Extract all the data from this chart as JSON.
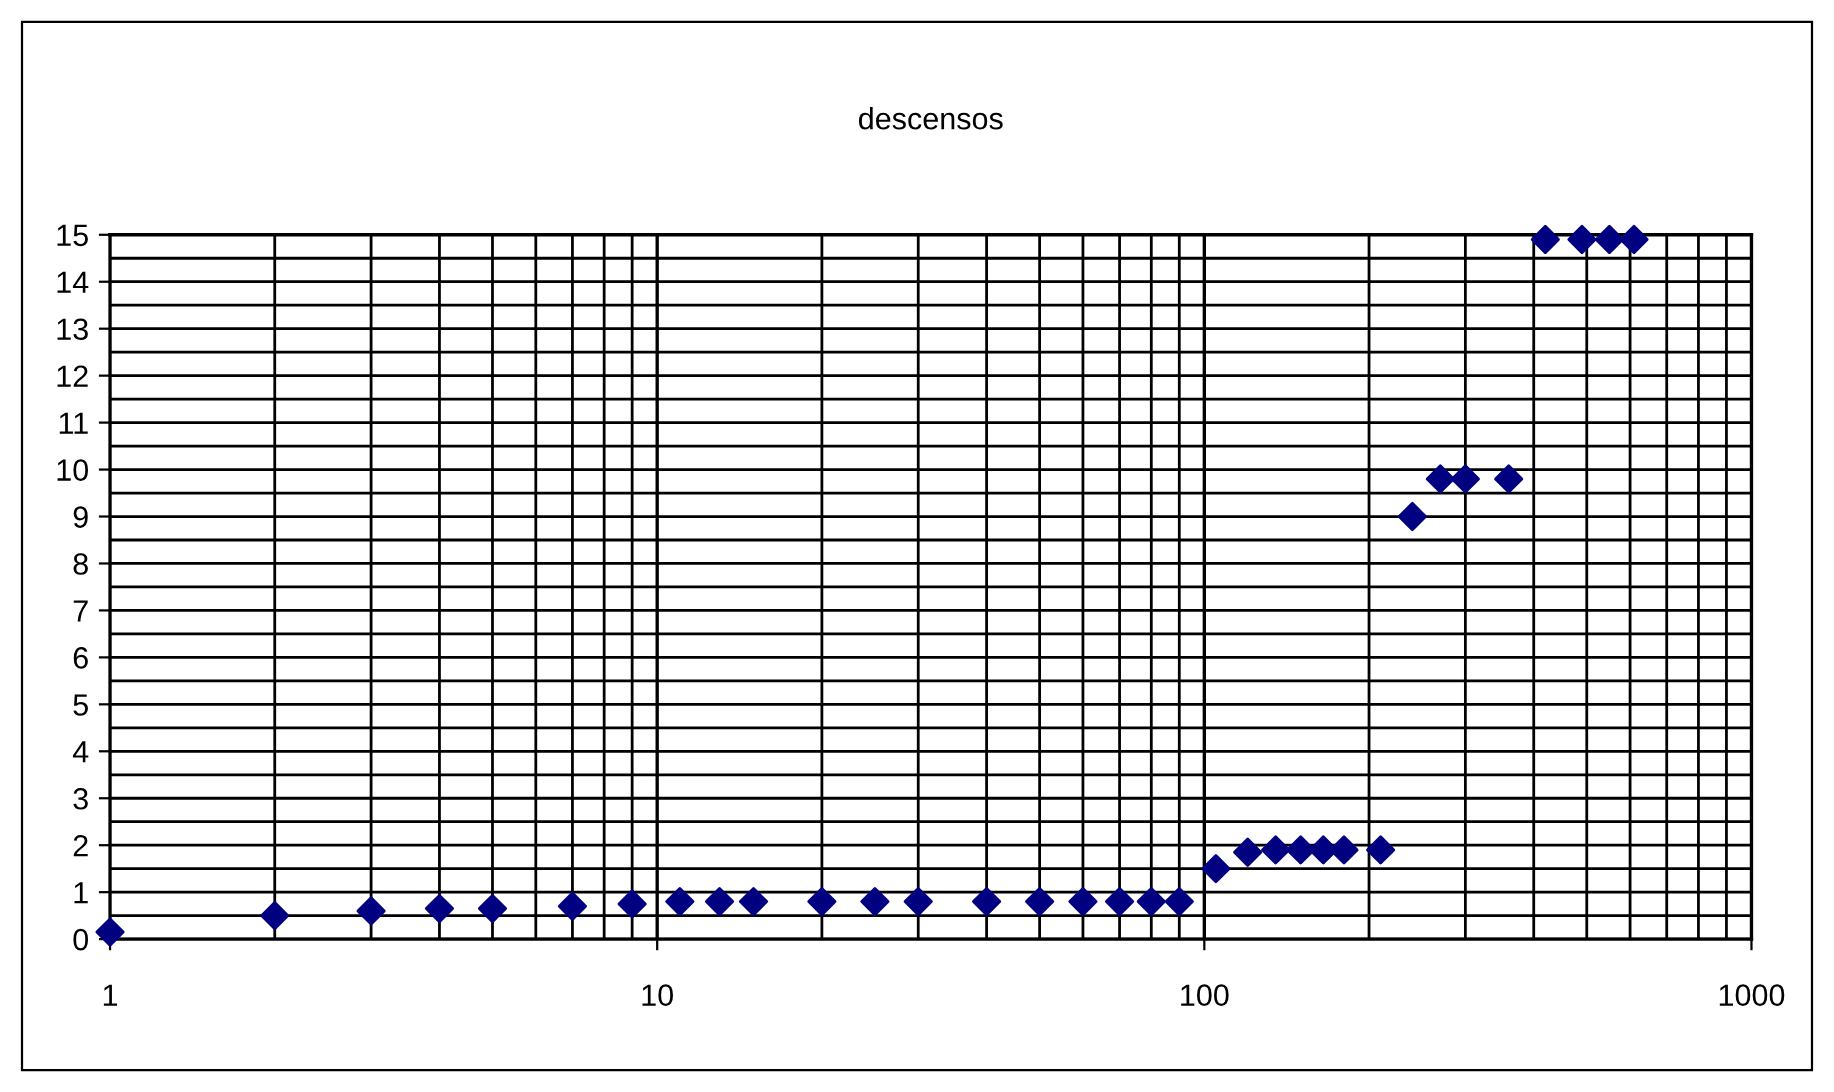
{
  "chart_data": {
    "type": "scatter",
    "title": "descensos",
    "log": "x",
    "grid": true,
    "marker": "diamond",
    "xlim": [
      1,
      1000
    ],
    "xticks": [
      1,
      10,
      100,
      1000
    ],
    "ylim": [
      0,
      15
    ],
    "yticks": [
      0,
      1,
      2,
      3,
      4,
      5,
      6,
      7,
      8,
      9,
      10,
      11,
      12,
      13,
      14,
      15
    ],
    "series": [
      {
        "color": "#000080",
        "x": [
          1,
          2,
          3,
          4,
          5,
          7,
          9,
          11,
          13,
          15,
          20,
          25,
          30,
          40,
          50,
          60,
          70,
          80,
          90,
          105,
          120,
          135,
          150,
          165,
          180,
          210,
          240,
          270,
          300,
          360,
          420,
          490,
          550,
          610
        ],
        "values": [
          0.15,
          0.5,
          0.6,
          0.65,
          0.65,
          0.7,
          0.75,
          0.8,
          0.8,
          0.8,
          0.8,
          0.8,
          0.8,
          0.8,
          0.8,
          0.8,
          0.8,
          0.8,
          0.8,
          1.5,
          1.85,
          1.9,
          1.9,
          1.9,
          1.9,
          1.9,
          9.0,
          9.8,
          9.8,
          9.8,
          14.9,
          14.9,
          14.9,
          14.9
        ]
      }
    ]
  }
}
